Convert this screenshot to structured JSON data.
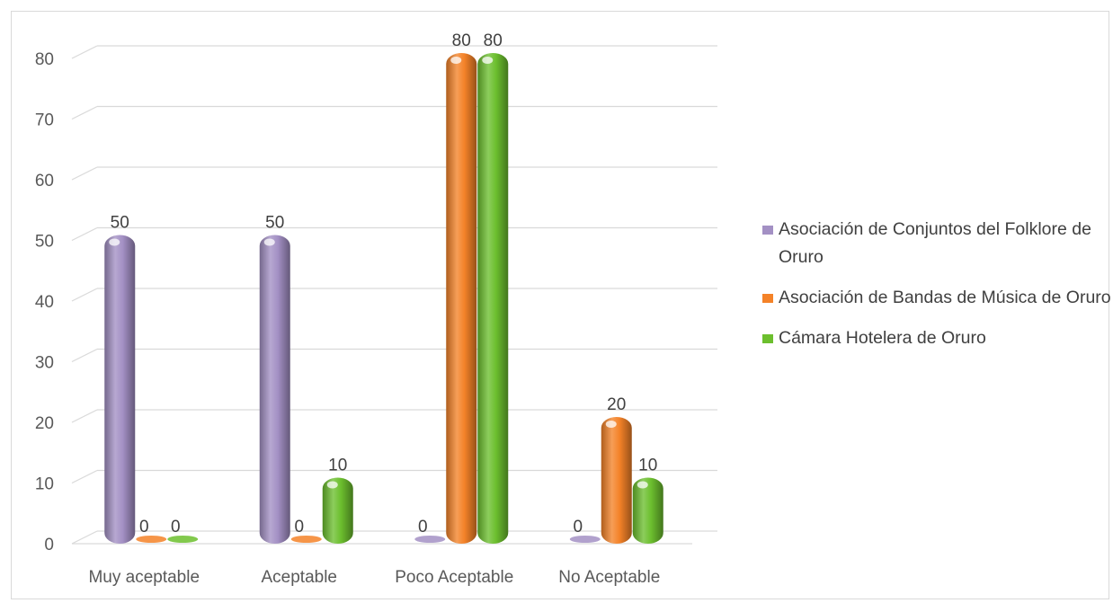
{
  "chart_data": {
    "type": "bar",
    "categories": [
      "Muy aceptable",
      "Aceptable",
      "Poco Aceptable",
      "No Aceptable"
    ],
    "series": [
      {
        "name": "Asociación de Conjuntos del Folklore de Oruro",
        "values": [
          50,
          50,
          0,
          0
        ],
        "color": "#a390c4"
      },
      {
        "name": "Asociación de Bandas de Música de Oruro",
        "values": [
          0,
          0,
          80,
          20
        ],
        "color": "#f48228"
      },
      {
        "name": "Cámara Hotelera de Oruro",
        "values": [
          0,
          10,
          80,
          10
        ],
        "color": "#6cbf2e"
      }
    ],
    "yticks": [
      0,
      10,
      20,
      30,
      40,
      50,
      60,
      70,
      80
    ],
    "ylim": [
      0,
      80
    ],
    "title": "",
    "xlabel": "",
    "ylabel": "",
    "grid": true,
    "legend_position": "right"
  }
}
